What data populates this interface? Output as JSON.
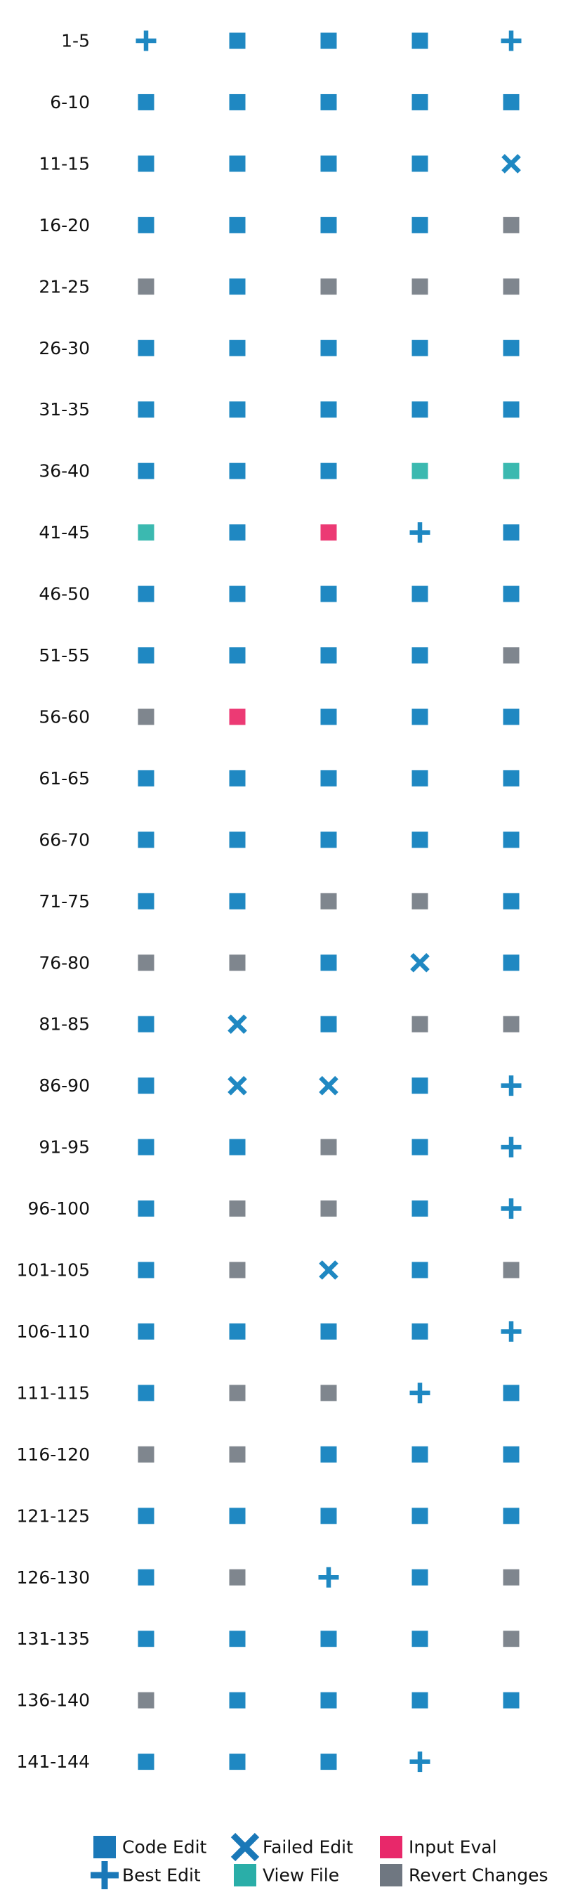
{
  "chart_data": {
    "type": "scatter",
    "row_labels": [
      "1-5",
      "6-10",
      "11-15",
      "16-20",
      "21-25",
      "26-30",
      "31-35",
      "36-40",
      "41-45",
      "46-50",
      "51-55",
      "56-60",
      "61-65",
      "66-70",
      "71-75",
      "76-80",
      "81-85",
      "86-90",
      "91-95",
      "96-100",
      "101-105",
      "106-110",
      "111-115",
      "116-120",
      "121-125",
      "126-130",
      "131-135",
      "136-140",
      "141-144"
    ],
    "columns": 5,
    "grid": [
      [
        "best",
        "code",
        "code",
        "code",
        "best"
      ],
      [
        "code",
        "code",
        "code",
        "code",
        "code"
      ],
      [
        "code",
        "code",
        "code",
        "code",
        "failed"
      ],
      [
        "code",
        "code",
        "code",
        "code",
        "revert"
      ],
      [
        "revert",
        "code",
        "revert",
        "revert",
        "revert"
      ],
      [
        "code",
        "code",
        "code",
        "code",
        "code"
      ],
      [
        "code",
        "code",
        "code",
        "code",
        "code"
      ],
      [
        "code",
        "code",
        "code",
        "view",
        "view"
      ],
      [
        "view",
        "code",
        "input",
        "best",
        "code"
      ],
      [
        "code",
        "code",
        "code",
        "code",
        "code"
      ],
      [
        "code",
        "code",
        "code",
        "code",
        "revert"
      ],
      [
        "revert",
        "input",
        "code",
        "code",
        "code"
      ],
      [
        "code",
        "code",
        "code",
        "code",
        "code"
      ],
      [
        "code",
        "code",
        "code",
        "code",
        "code"
      ],
      [
        "code",
        "code",
        "revert",
        "revert",
        "code"
      ],
      [
        "revert",
        "revert",
        "code",
        "failed",
        "code"
      ],
      [
        "code",
        "failed",
        "code",
        "revert",
        "revert"
      ],
      [
        "code",
        "failed",
        "failed",
        "code",
        "best"
      ],
      [
        "code",
        "code",
        "revert",
        "code",
        "best"
      ],
      [
        "code",
        "revert",
        "revert",
        "code",
        "best"
      ],
      [
        "code",
        "revert",
        "failed",
        "code",
        "revert"
      ],
      [
        "code",
        "code",
        "code",
        "code",
        "best"
      ],
      [
        "code",
        "revert",
        "revert",
        "best",
        "code"
      ],
      [
        "revert",
        "revert",
        "code",
        "code",
        "code"
      ],
      [
        "code",
        "code",
        "code",
        "code",
        "code"
      ],
      [
        "code",
        "revert",
        "best",
        "code",
        "revert"
      ],
      [
        "code",
        "code",
        "code",
        "code",
        "revert"
      ],
      [
        "revert",
        "code",
        "code",
        "code",
        "code"
      ],
      [
        "code",
        "code",
        "code",
        "best",
        null
      ]
    ],
    "categories": {
      "code": {
        "label": "Code Edit",
        "marker": "square",
        "color": "#1f88c2",
        "legend_color": "#1a78b8"
      },
      "best": {
        "label": "Best Edit",
        "marker": "plus",
        "color": "#1f88c2",
        "legend_color": "#1a78b8"
      },
      "failed": {
        "label": "Failed Edit",
        "marker": "x",
        "color": "#1f88c2",
        "legend_color": "#1a78b8"
      },
      "view": {
        "label": "View File",
        "marker": "square",
        "color": "#3bb9b0",
        "legend_color": "#2aaea8"
      },
      "input": {
        "label": "Input Eval",
        "marker": "square",
        "color": "#ec3a74",
        "legend_color": "#e8286a"
      },
      "revert": {
        "label": "Revert Changes",
        "marker": "square",
        "color": "#7f868e",
        "legend_color": "#6f7781"
      }
    },
    "legend_order": [
      "code",
      "best",
      "failed",
      "view",
      "input",
      "revert"
    ],
    "legend_position": "bottom"
  }
}
